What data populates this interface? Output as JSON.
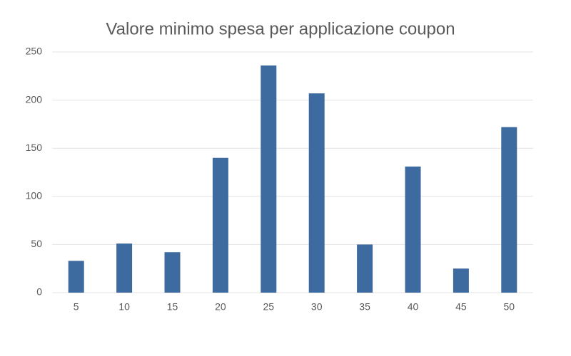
{
  "chart_data": {
    "type": "bar",
    "title": "Valore minimo spesa per applicazione coupon",
    "categories": [
      "5",
      "10",
      "15",
      "20",
      "25",
      "30",
      "35",
      "40",
      "45",
      "50"
    ],
    "values": [
      33,
      51,
      42,
      140,
      236,
      207,
      50,
      131,
      25,
      172
    ],
    "color": "#3d6a9f",
    "ylim": [
      0,
      250
    ],
    "yticks": [
      0,
      50,
      100,
      150,
      200,
      250
    ],
    "grid": true
  }
}
